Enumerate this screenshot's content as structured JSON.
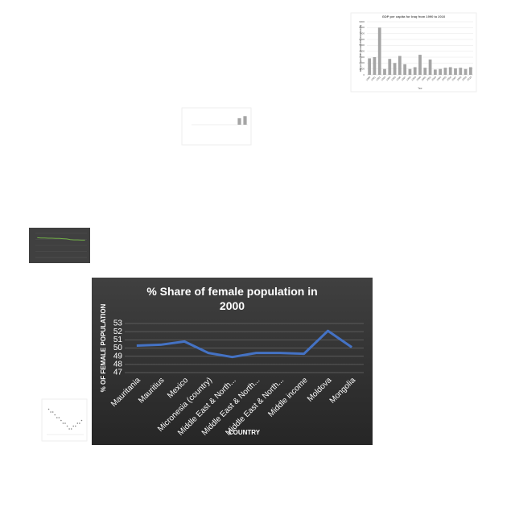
{
  "chart_data": [
    {
      "type": "line",
      "title": "% Share of female population in 2000",
      "x_label": "COUNTRY",
      "y_label": "% OF FEMALE POPULATION",
      "categories": [
        "Mauritania",
        "Mauritius",
        "Mexico",
        "Micronesia (country)",
        "Middle East & North...",
        "Middle East & North...",
        "Middle East & North...",
        "Middle income",
        "Moldova",
        "Mongolia"
      ],
      "values": [
        50.3,
        50.4,
        50.8,
        49.4,
        48.9,
        49.4,
        49.4,
        49.3,
        52.1,
        50.1
      ],
      "color": "#4472c4",
      "ylim": [
        47,
        53
      ],
      "yticks": [
        47,
        48,
        49,
        50,
        51,
        52,
        53
      ],
      "grid": true
    },
    {
      "type": "bar",
      "title": "GDP per capita for Iraq from 1990 to 2010",
      "x_label": "Year",
      "y_label": "GDP per capita, PPP (constant 2017 international $)",
      "categories": [
        "1990",
        "1991",
        "1992",
        "1993",
        "1994",
        "1995",
        "1996",
        "1997",
        "1998",
        "1999",
        "2000",
        "2001",
        "2002",
        "2003",
        "2004",
        "2005",
        "2006",
        "2007",
        "2008",
        "2009",
        "2010"
      ],
      "values": [
        2800,
        3000,
        8000,
        1000,
        2700,
        2000,
        3200,
        1800,
        1000,
        1300,
        3400,
        1200,
        2600,
        900,
        1000,
        1200,
        1300,
        1100,
        1200,
        1000,
        1300
      ],
      "color": "#a5a5a5",
      "ylim": [
        0,
        9000
      ],
      "yticks": [
        0,
        1000,
        2000,
        3000,
        4000,
        5000,
        6000,
        7000,
        8000,
        9000
      ],
      "grid": true
    },
    {
      "type": "bar",
      "values": [
        0,
        0,
        0,
        0,
        0,
        0,
        0,
        0,
        2.5,
        3.3
      ],
      "color": "#a5a5a5",
      "ylim": [
        0,
        4
      ],
      "grid": false
    },
    {
      "type": "line",
      "values": [
        82,
        81,
        81,
        80,
        80,
        79,
        79,
        78,
        77,
        74,
        73,
        73,
        72,
        72
      ],
      "color": "#70ad47",
      "ylim": [
        0,
        100
      ],
      "grid": true
    },
    {
      "type": "scatter",
      "x": [
        1,
        2,
        3,
        4,
        5,
        6,
        7,
        8,
        9,
        10,
        11,
        12,
        13,
        14,
        15,
        16,
        17
      ],
      "values": [
        9,
        8,
        8,
        7,
        6,
        6,
        5,
        4,
        4,
        3,
        2,
        2,
        3,
        3,
        4,
        4,
        5
      ],
      "color": "#7f7f7f",
      "xlim": [
        0,
        18
      ],
      "ylim": [
        0,
        10
      ],
      "grid": false
    }
  ]
}
